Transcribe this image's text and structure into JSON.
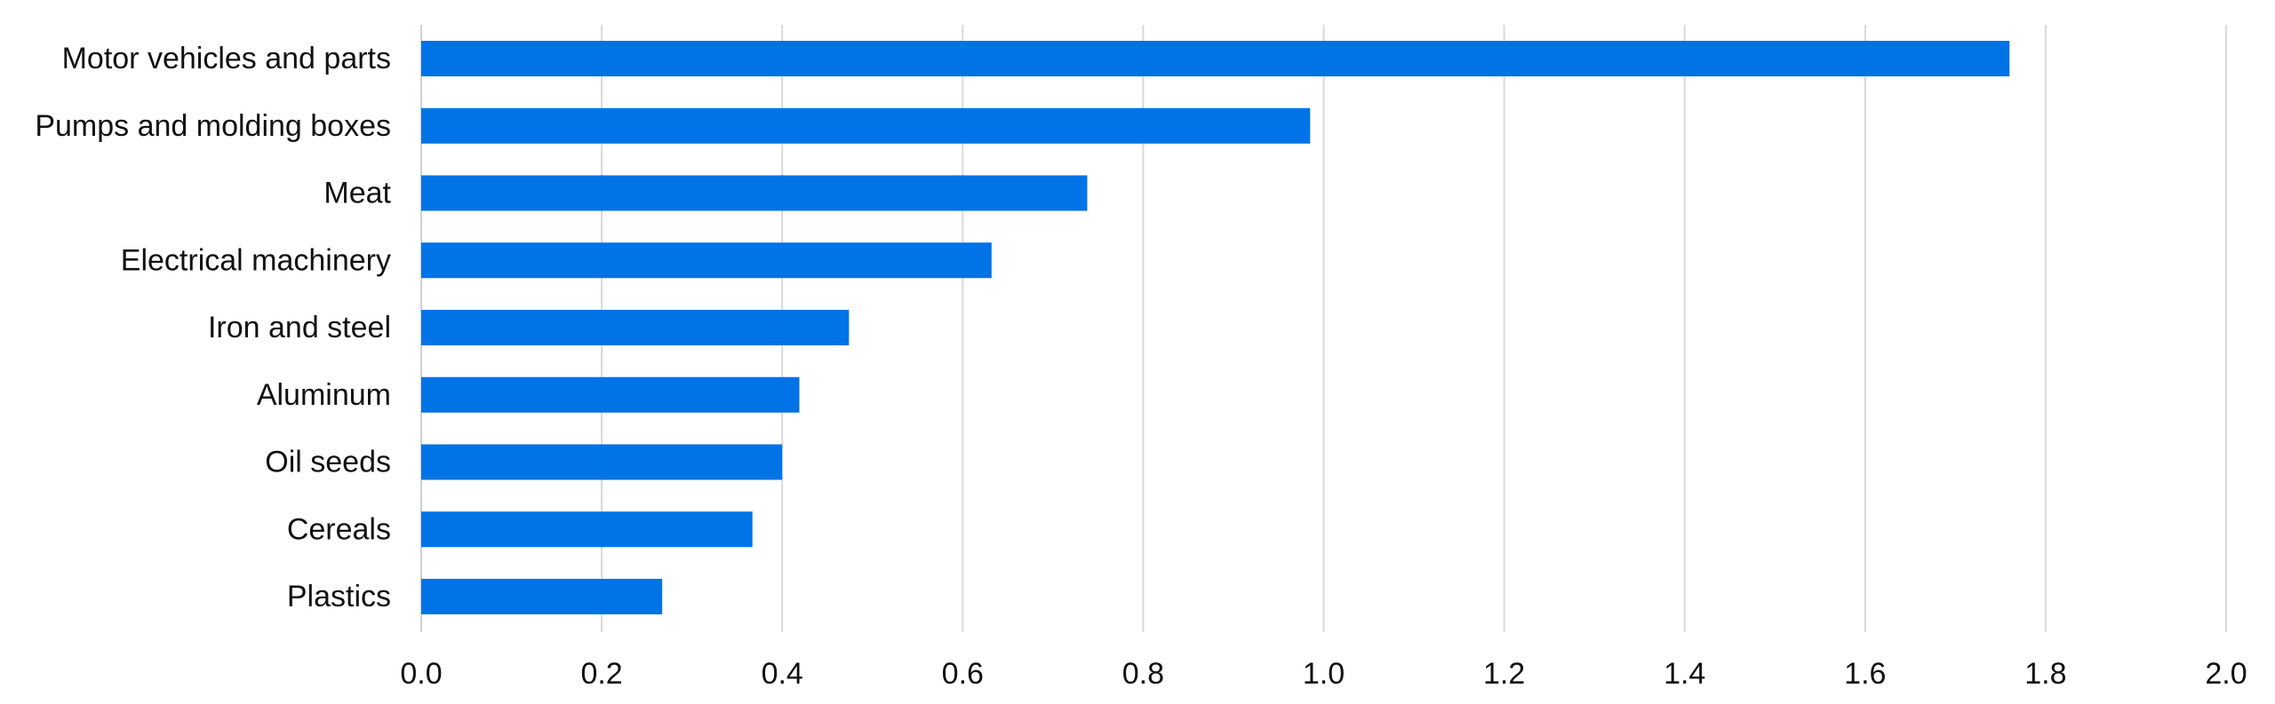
{
  "chart_data": {
    "type": "bar",
    "orientation": "horizontal",
    "categories": [
      "Motor vehicles and parts",
      "Pumps and molding boxes",
      "Meat",
      "Electrical machinery",
      "Iron and steel",
      "Aluminum",
      "Oil seeds",
      "Cereals",
      "Plastics"
    ],
    "values": [
      1.76,
      0.985,
      0.738,
      0.632,
      0.474,
      0.419,
      0.4,
      0.367,
      0.267
    ],
    "xlim": [
      0.0,
      2.0
    ],
    "xticks": [
      "0.0",
      "0.2",
      "0.4",
      "0.6",
      "0.8",
      "1.0",
      "1.2",
      "1.4",
      "1.6",
      "1.8",
      "2.0"
    ],
    "title": "",
    "xlabel": "",
    "ylabel": "",
    "grid": "vertical",
    "legend": "none",
    "colors": {
      "bar": "#0073E6",
      "grid": "#d9d9d9",
      "text": "#111111"
    }
  }
}
